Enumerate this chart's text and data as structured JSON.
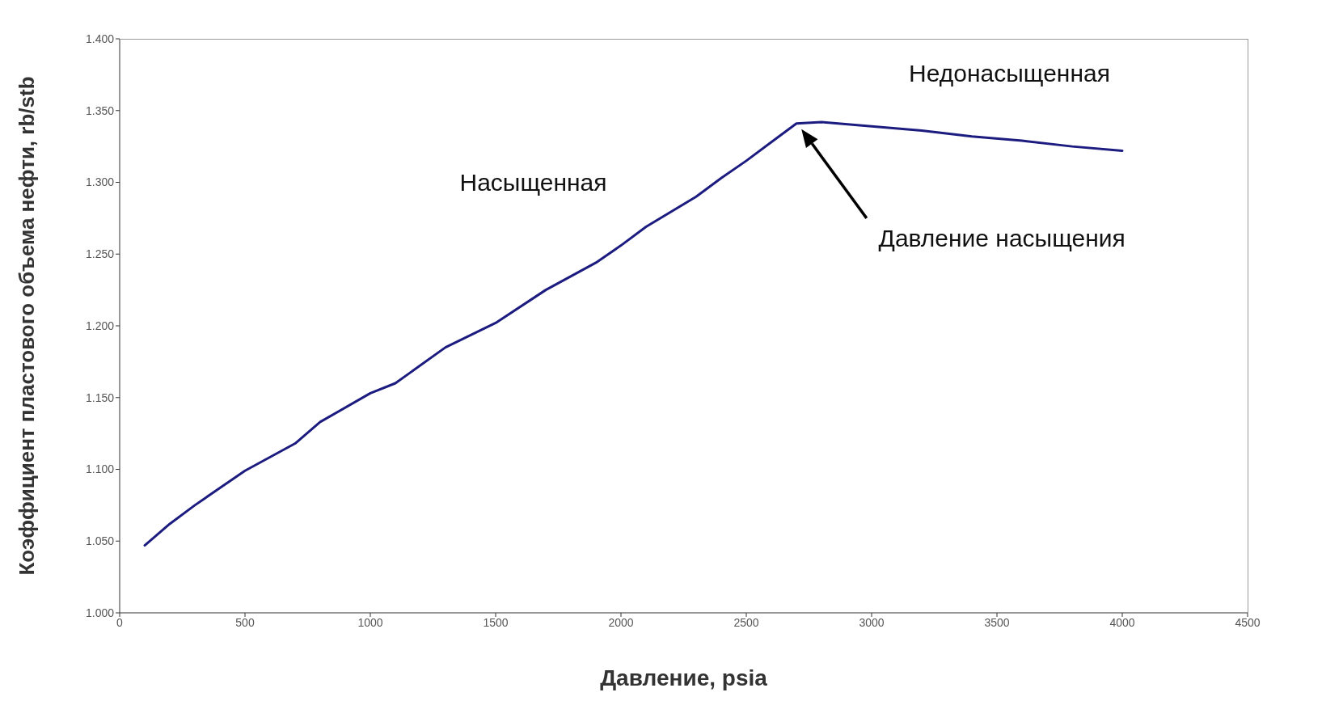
{
  "chart_data": {
    "type": "line",
    "xlabel": "Давление, psia",
    "ylabel": "Коэффициент пластового объема нефти, rb/stb",
    "x": [
      100,
      200,
      300,
      400,
      500,
      700,
      800,
      1000,
      1100,
      1300,
      1500,
      1700,
      1900,
      2000,
      2100,
      2300,
      2400,
      2500,
      2600,
      2700,
      2800,
      3000,
      3200,
      3400,
      3600,
      3800,
      4000
    ],
    "series": [
      {
        "color": "#1c1c80",
        "values": [
          1.047,
          1.062,
          1.075,
          1.087,
          1.099,
          1.118,
          1.133,
          1.153,
          1.16,
          1.185,
          1.202,
          1.225,
          1.244,
          1.256,
          1.269,
          1.29,
          1.303,
          1.315,
          1.328,
          1.341,
          1.342,
          1.339,
          1.336,
          1.332,
          1.329,
          1.325,
          1.322
        ]
      }
    ],
    "xlim": [
      0,
      4500
    ],
    "xticks": [
      0,
      500,
      1000,
      1500,
      2000,
      2500,
      3000,
      3500,
      4000,
      4500
    ],
    "ylim": [
      1.0,
      1.4
    ],
    "yticks": [
      {
        "value": 1.0,
        "label": "1.000"
      },
      {
        "value": 1.05,
        "label": "1.050"
      },
      {
        "value": 1.1,
        "label": "1.100"
      },
      {
        "value": 1.15,
        "label": "1.150"
      },
      {
        "value": 1.2,
        "label": "1.200"
      },
      {
        "value": 1.25,
        "label": "1.250"
      },
      {
        "value": 1.3,
        "label": "1.300"
      },
      {
        "value": 1.35,
        "label": "1.350"
      },
      {
        "value": 1.4,
        "label": "1.400"
      }
    ],
    "grid": false,
    "legend": false,
    "marker": "none",
    "line_style": "solid",
    "annotations": [
      "Насыщенная",
      "Недонасыщенная",
      "Давление насыщения"
    ]
  }
}
